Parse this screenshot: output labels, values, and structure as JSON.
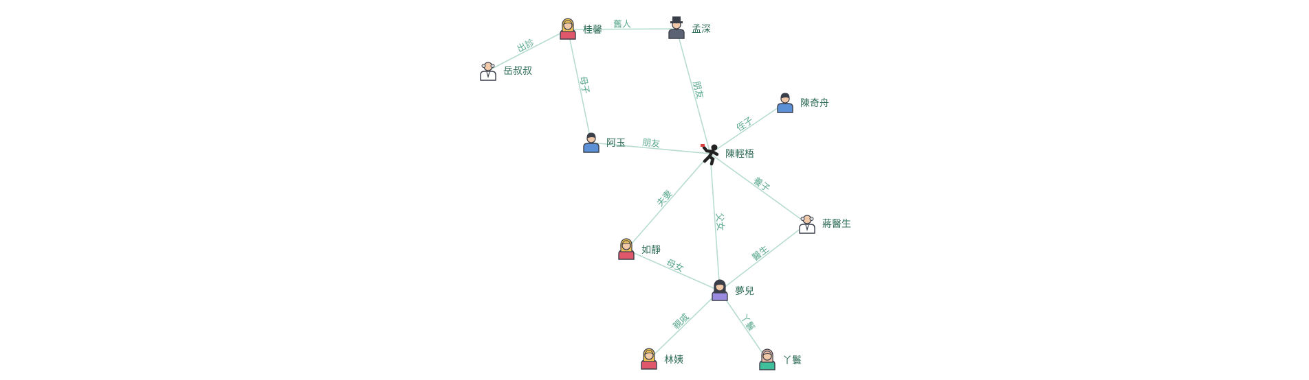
{
  "diagram": {
    "type": "relationship-graph",
    "colors": {
      "edge": "#b7dccf",
      "edge_label": "#5aa88e",
      "node_label": "#2e6b56"
    },
    "nodes": [
      {
        "id": "guixin",
        "label": "桂馨",
        "icon": "woman-blonde-icon"
      },
      {
        "id": "mengshen",
        "label": "孟深",
        "icon": "man-hat-icon"
      },
      {
        "id": "yueshushu",
        "label": "岳叔叔",
        "icon": "old-man-icon"
      },
      {
        "id": "chenqizhou",
        "label": "陳奇舟",
        "icon": "man-blue-icon"
      },
      {
        "id": "ayu",
        "label": "阿玉",
        "icon": "man-blue-icon"
      },
      {
        "id": "chenqingwu",
        "label": "陳輕梧",
        "icon": "running-man-icon"
      },
      {
        "id": "jiangyisheng",
        "label": "蔣醫生",
        "icon": "old-man-icon"
      },
      {
        "id": "rujing",
        "label": "如靜",
        "icon": "woman-blonde-icon"
      },
      {
        "id": "menger",
        "label": "夢兒",
        "icon": "woman-purple-icon"
      },
      {
        "id": "linyi",
        "label": "林姨",
        "icon": "woman-blonde-icon"
      },
      {
        "id": "yahuan",
        "label": "丫鬟",
        "icon": "maid-icon"
      }
    ],
    "edges": [
      {
        "from": "guixin",
        "to": "yueshushu",
        "label": "出診"
      },
      {
        "from": "guixin",
        "to": "mengshen",
        "label": "舊人"
      },
      {
        "from": "guixin",
        "to": "ayu",
        "label": "母子"
      },
      {
        "from": "mengshen",
        "to": "chenqingwu",
        "label": "朋友"
      },
      {
        "from": "chenqingwu",
        "to": "chenqizhou",
        "label": "侄子"
      },
      {
        "from": "chenqingwu",
        "to": "ayu",
        "label": "朋友"
      },
      {
        "from": "chenqingwu",
        "to": "jiangyisheng",
        "label": "養子"
      },
      {
        "from": "chenqingwu",
        "to": "rujing",
        "label": "夫妻"
      },
      {
        "from": "chenqingwu",
        "to": "menger",
        "label": "父女"
      },
      {
        "from": "jiangyisheng",
        "to": "menger",
        "label": "醫生"
      },
      {
        "from": "rujing",
        "to": "menger",
        "label": "母女"
      },
      {
        "from": "menger",
        "to": "linyi",
        "label": "親戚"
      },
      {
        "from": "menger",
        "to": "yahuan",
        "label": "丫鬟"
      }
    ]
  }
}
